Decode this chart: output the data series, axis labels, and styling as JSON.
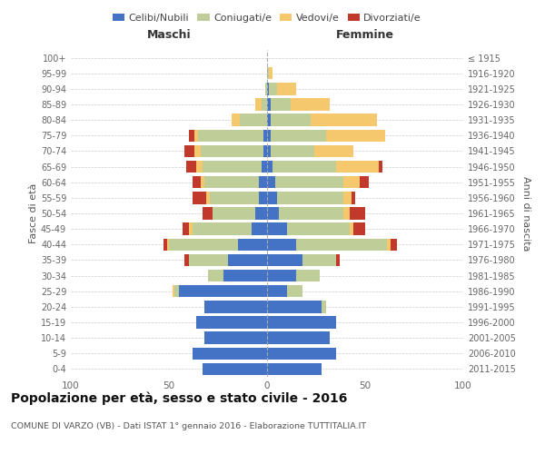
{
  "age_groups": [
    "0-4",
    "5-9",
    "10-14",
    "15-19",
    "20-24",
    "25-29",
    "30-34",
    "35-39",
    "40-44",
    "45-49",
    "50-54",
    "55-59",
    "60-64",
    "65-69",
    "70-74",
    "75-79",
    "80-84",
    "85-89",
    "90-94",
    "95-99",
    "100+"
  ],
  "birth_years": [
    "2011-2015",
    "2006-2010",
    "2001-2005",
    "1996-2000",
    "1991-1995",
    "1986-1990",
    "1981-1985",
    "1976-1980",
    "1971-1975",
    "1966-1970",
    "1961-1965",
    "1956-1960",
    "1951-1955",
    "1946-1950",
    "1941-1945",
    "1936-1940",
    "1931-1935",
    "1926-1930",
    "1921-1925",
    "1916-1920",
    "≤ 1915"
  ],
  "maschi": {
    "celibi": [
      33,
      38,
      32,
      36,
      32,
      45,
      22,
      20,
      15,
      8,
      6,
      4,
      4,
      3,
      2,
      2,
      0,
      0,
      0,
      0,
      0
    ],
    "coniugati": [
      0,
      0,
      0,
      0,
      0,
      2,
      8,
      20,
      35,
      30,
      22,
      25,
      28,
      30,
      32,
      33,
      14,
      3,
      1,
      0,
      0
    ],
    "vedovi": [
      0,
      0,
      0,
      0,
      0,
      1,
      0,
      0,
      1,
      2,
      0,
      2,
      2,
      3,
      3,
      2,
      4,
      3,
      0,
      0,
      0
    ],
    "divorziati": [
      0,
      0,
      0,
      0,
      0,
      0,
      0,
      2,
      2,
      3,
      5,
      7,
      4,
      5,
      5,
      3,
      0,
      0,
      0,
      0,
      0
    ]
  },
  "femmine": {
    "nubili": [
      28,
      35,
      32,
      35,
      28,
      10,
      15,
      18,
      15,
      10,
      6,
      5,
      4,
      3,
      2,
      2,
      2,
      2,
      1,
      0,
      0
    ],
    "coniugate": [
      0,
      0,
      0,
      0,
      2,
      8,
      12,
      17,
      46,
      32,
      33,
      34,
      35,
      32,
      22,
      28,
      20,
      10,
      4,
      1,
      0
    ],
    "vedove": [
      0,
      0,
      0,
      0,
      0,
      0,
      0,
      0,
      2,
      2,
      3,
      4,
      8,
      22,
      20,
      30,
      34,
      20,
      10,
      2,
      0
    ],
    "divorziate": [
      0,
      0,
      0,
      0,
      0,
      0,
      0,
      2,
      3,
      6,
      8,
      2,
      5,
      2,
      0,
      0,
      0,
      0,
      0,
      0,
      0
    ]
  },
  "colors": {
    "celibi_nubili": "#4472C4",
    "coniugati": "#BFCE99",
    "vedovi": "#F5C86E",
    "divorziati": "#C0392B"
  },
  "title": "Popolazione per età, sesso e stato civile - 2016",
  "subtitle": "COMUNE DI VARZO (VB) - Dati ISTAT 1° gennaio 2016 - Elaborazione TUTTITALIA.IT",
  "xlabel_left": "Maschi",
  "xlabel_right": "Femmine",
  "ylabel_left": "Fasce di età",
  "ylabel_right": "Anni di nascita",
  "xlim": 100,
  "background_color": "#ffffff"
}
